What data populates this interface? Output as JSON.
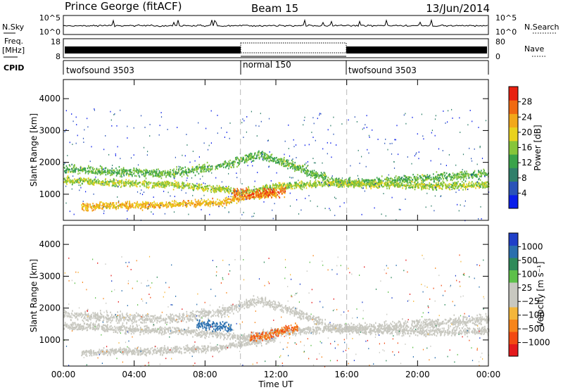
{
  "header": {
    "station": "Prince George (fitACF)",
    "beam": "Beam 15",
    "date": "13/Jun/2014"
  },
  "panels": {
    "noise": {
      "left_label": "N.Sky",
      "right_label": "N.Search",
      "left_ticks": [
        "10^5",
        "10^0"
      ],
      "right_ticks": [
        "10^5",
        "10^0"
      ]
    },
    "freq": {
      "left_label_1": "Freq.",
      "left_label_2": "[MHz]",
      "left_ticks": [
        "18",
        "8"
      ],
      "right_label": "Nave",
      "right_ticks": [
        "80",
        "0"
      ]
    },
    "cpid": {
      "label": "CPID",
      "segments": [
        {
          "name": "twofsound 3503",
          "start_h": 0,
          "end_h": 10
        },
        {
          "name": "normal 150",
          "start_h": 10,
          "end_h": 16
        },
        {
          "name": "twofsound 3503",
          "start_h": 16,
          "end_h": 24
        }
      ]
    }
  },
  "colors": {
    "power_scale": [
      "#0a1eea",
      "#2a53b8",
      "#2f7f6a",
      "#3aa34a",
      "#86c53a",
      "#e8d21e",
      "#f2a81a",
      "#f06a12",
      "#e82010"
    ],
    "velocity_scale": [
      "#e41a1c",
      "#f24a12",
      "#f7851a",
      "#f4b63a",
      "#c8c8c0",
      "#c8c8c0",
      "#5ec04a",
      "#2e8a5a",
      "#2a6fae",
      "#1f3fc8"
    ]
  },
  "chart_data": [
    {
      "type": "heatmap",
      "name": "power",
      "ylabel": "Slant Range [km]",
      "x_range_hours": [
        0,
        24
      ],
      "ylim": [
        180,
        4600
      ],
      "y_ticks": [
        1000,
        2000,
        3000,
        4000
      ],
      "colorbar": {
        "label": "Power [dB]",
        "ticks": [
          "28",
          "24",
          "20",
          "16",
          "12",
          "8",
          "4"
        ],
        "range": [
          0,
          32
        ]
      },
      "bands": [
        {
          "range_km": [
            [
              0,
              1800
            ],
            [
              3,
              1700
            ],
            [
              6,
              1650
            ],
            [
              9,
              1900
            ],
            [
              11,
              2250
            ],
            [
              13,
              1900
            ],
            [
              15,
              1450
            ],
            [
              16,
              1350
            ],
            [
              19,
              1450
            ],
            [
              24,
              1650
            ]
          ],
          "power_db": 14,
          "width_km": 200
        },
        {
          "range_km": [
            [
              0,
              1450
            ],
            [
              3,
              1350
            ],
            [
              6,
              1300
            ],
            [
              9,
              1150
            ],
            [
              10,
              1050
            ],
            [
              12,
              1250
            ],
            [
              15,
              1350
            ],
            [
              18,
              1300
            ],
            [
              21,
              1250
            ],
            [
              24,
              1300
            ]
          ],
          "power_db": 17,
          "width_km": 160
        },
        {
          "range_km": [
            [
              1,
              600
            ],
            [
              3,
              650
            ],
            [
              5,
              650
            ],
            [
              7,
              700
            ],
            [
              9,
              750
            ],
            [
              10,
              900
            ],
            [
              11,
              950
            ],
            [
              12,
              1050
            ]
          ],
          "power_db": 22,
          "width_km": 160
        },
        {
          "range_km": [
            [
              9.5,
              1050
            ],
            [
              10.5,
              1000
            ],
            [
              11.5,
              1050
            ],
            [
              12.5,
              1100
            ]
          ],
          "power_db": 27,
          "width_km": 220
        }
      ]
    },
    {
      "type": "heatmap",
      "name": "velocity",
      "ylabel": "Slant Range [km]",
      "xlabel": "Time UT",
      "x_range_hours": [
        0,
        24
      ],
      "x_ticks": [
        "00:00",
        "04:00",
        "08:00",
        "12:00",
        "16:00",
        "20:00",
        "00:00"
      ],
      "ylim": [
        180,
        4600
      ],
      "y_ticks": [
        1000,
        2000,
        3000,
        4000
      ],
      "colorbar": {
        "label": "Velocity [m s⁻¹]",
        "ticks": [
          "1000",
          "500",
          "100",
          "25",
          "−25",
          "−100",
          "−500",
          "−1000"
        ],
        "range": [
          -1000,
          1000
        ]
      },
      "bands": [
        {
          "range_km": [
            [
              0,
              1800
            ],
            [
              3,
              1700
            ],
            [
              6,
              1650
            ],
            [
              9,
              1900
            ],
            [
              11,
              2250
            ],
            [
              13,
              1900
            ],
            [
              15,
              1450
            ],
            [
              16,
              1350
            ],
            [
              19,
              1450
            ],
            [
              24,
              1650
            ]
          ],
          "velocity_ms": 0,
          "width_km": 220
        },
        {
          "range_km": [
            [
              0,
              1450
            ],
            [
              3,
              1350
            ],
            [
              6,
              1300
            ],
            [
              9,
              1150
            ],
            [
              10,
              1050
            ],
            [
              12,
              1250
            ],
            [
              15,
              1350
            ],
            [
              18,
              1300
            ],
            [
              21,
              1250
            ],
            [
              24,
              1300
            ]
          ],
          "velocity_ms": 0,
          "width_km": 180
        },
        {
          "range_km": [
            [
              1,
              600
            ],
            [
              3,
              650
            ],
            [
              5,
              650
            ],
            [
              7,
              700
            ],
            [
              9,
              750
            ],
            [
              10,
              900
            ],
            [
              11,
              950
            ],
            [
              12,
              1050
            ]
          ],
          "velocity_ms": 0,
          "width_km": 160
        },
        {
          "range_km": [
            [
              7.5,
              1500
            ],
            [
              8.5,
              1450
            ],
            [
              9.5,
              1400
            ]
          ],
          "velocity_ms": 400,
          "width_km": 220
        },
        {
          "range_km": [
            [
              10.5,
              1050
            ],
            [
              11.5,
              1150
            ],
            [
              12.5,
              1300
            ],
            [
              13.2,
              1400
            ]
          ],
          "velocity_ms": -250,
          "width_km": 200
        }
      ]
    }
  ]
}
